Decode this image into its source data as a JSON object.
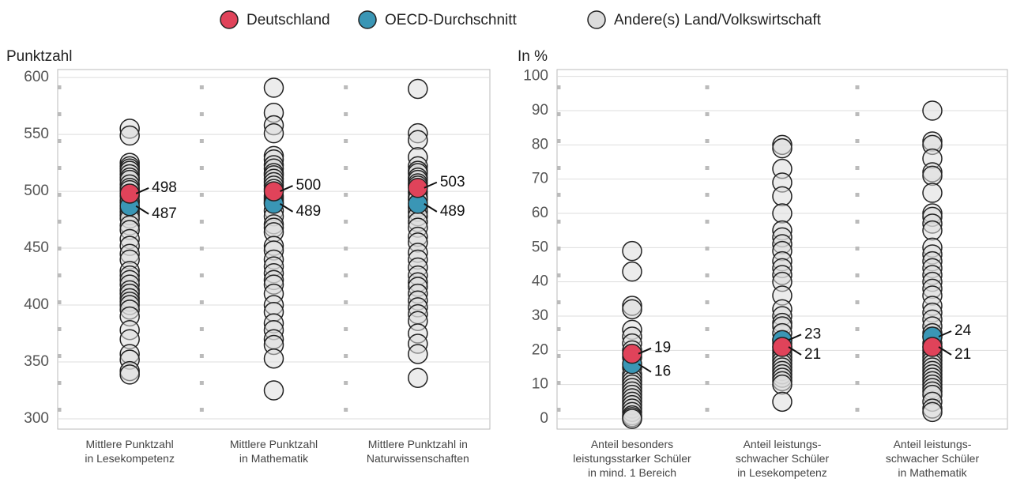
{
  "chart_data": {
    "type": "strip",
    "legend": [
      {
        "name": "Deutschland",
        "color": "#e0435a"
      },
      {
        "name": "OECD-Durchschnitt",
        "color": "#3a96b5"
      },
      {
        "name": "Andere(s) Land/Volkswirtschaft",
        "color": "#dcdcdc"
      }
    ],
    "panels": [
      {
        "y_label": "Punktzahl",
        "ylim": [
          291,
          607
        ],
        "yticks": [
          300,
          350,
          400,
          450,
          500,
          550,
          600
        ],
        "categories": [
          "Mittlere Punktzahl\nin Lesekompetenz",
          "Mittlere Punktzahl\nin  Mathematik",
          "Mittlere Punktzahl in\nNaturwissenschaften"
        ],
        "series": [
          {
            "values": [
              498,
              500,
              503
            ]
          },
          {
            "values": [
              487,
              489,
              489
            ]
          },
          {
            "values": [
              [
                555,
                549,
                525,
                522,
                520,
                518,
                515,
                512,
                510,
                506,
                503,
                501,
                496,
                492,
                490,
                485,
                482,
                479,
                476,
                470,
                466,
                458,
                452,
                445,
                440,
                430,
                426,
                422,
                418,
                413,
                410,
                406,
                403,
                400,
                396,
                390,
                378,
                370,
                357,
                352,
                342,
                339
              ],
              [
                591,
                569,
                558,
                551,
                531,
                528,
                523,
                520,
                516,
                514,
                511,
                508,
                505,
                502,
                496,
                494,
                492,
                490,
                483,
                478,
                471,
                468,
                464,
                452,
                448,
                440,
                434,
                428,
                422,
                418,
                410,
                400,
                394,
                384,
                378,
                370,
                365,
                353,
                325
              ],
              [
                590,
                551,
                545,
                530,
                522,
                518,
                516,
                512,
                510,
                507,
                505,
                499,
                495,
                493,
                486,
                482,
                478,
                473,
                468,
                460,
                455,
                446,
                440,
                433,
                426,
                420,
                416,
                410,
                404,
                398,
                392,
                386,
                375,
                366,
                357,
                336
              ]
            ]
          }
        ]
      },
      {
        "y_label": "In %",
        "ylim": [
          -3,
          102
        ],
        "yticks": [
          0,
          10,
          20,
          30,
          40,
          50,
          60,
          70,
          80,
          90,
          100
        ],
        "categories": [
          "Anteil besonders\nleistungsstarker Schüler\nin mind. 1 Bereich",
          "Anteil leistungs-\nschwacher Schüler\nin Lesekompetenz",
          "Anteil leistungs-\nschwacher Schüler\nin Mathematik"
        ],
        "series": [
          {
            "values": [
              19,
              21,
              21
            ]
          },
          {
            "values": [
              16,
              23,
              24
            ]
          },
          {
            "values": [
              [
                49,
                43,
                33,
                32,
                26,
                24,
                22,
                20,
                18,
                15,
                13,
                12,
                11,
                10,
                9,
                8,
                7,
                6,
                5,
                4,
                3,
                2,
                1,
                0.5,
                0
              ],
              [
                80,
                79,
                73,
                69,
                65,
                60,
                55,
                53,
                51,
                49,
                46,
                44,
                42,
                40,
                36,
                32,
                30,
                28,
                27,
                25,
                23,
                22,
                21,
                20,
                19,
                18,
                17,
                16,
                15,
                14,
                13,
                12,
                11,
                10,
                5
              ],
              [
                90,
                81,
                80,
                76,
                72,
                71,
                66,
                60,
                59,
                57,
                55,
                50,
                48,
                46,
                44,
                42,
                40,
                38,
                36,
                33,
                31,
                29,
                27,
                25,
                24,
                22,
                21,
                20,
                19,
                18,
                17,
                16,
                15,
                14,
                13,
                12,
                11,
                10,
                9,
                8,
                7,
                5,
                3,
                2
              ]
            ]
          }
        ]
      }
    ]
  }
}
